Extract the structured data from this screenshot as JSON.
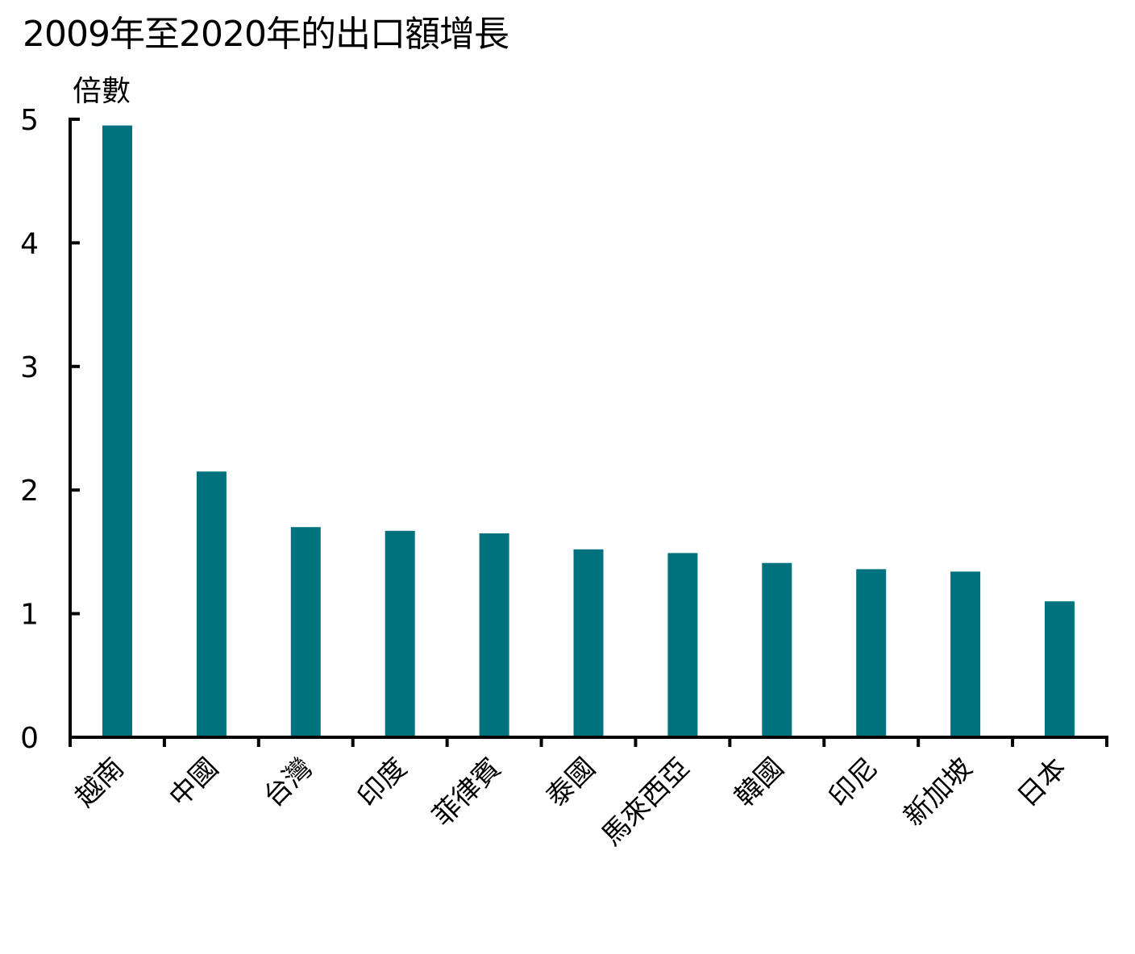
{
  "chart_data": {
    "type": "bar",
    "title": "2009年至2020年的出口額增長",
    "ylabel": "倍數",
    "xlabel": "",
    "ylim": [
      0,
      5
    ],
    "yticks": [
      0,
      1,
      2,
      3,
      4,
      5
    ],
    "grid": false,
    "legend": "none",
    "bar_color": "#00727D",
    "categories": [
      "越南",
      "中國",
      "台灣",
      "印度",
      "菲律賓",
      "泰國",
      "馬來西亞",
      "韓國",
      "印尼",
      "新加坡",
      "日本"
    ],
    "values": [
      4.95,
      2.15,
      1.7,
      1.67,
      1.65,
      1.52,
      1.49,
      1.41,
      1.36,
      1.34,
      1.1
    ]
  }
}
